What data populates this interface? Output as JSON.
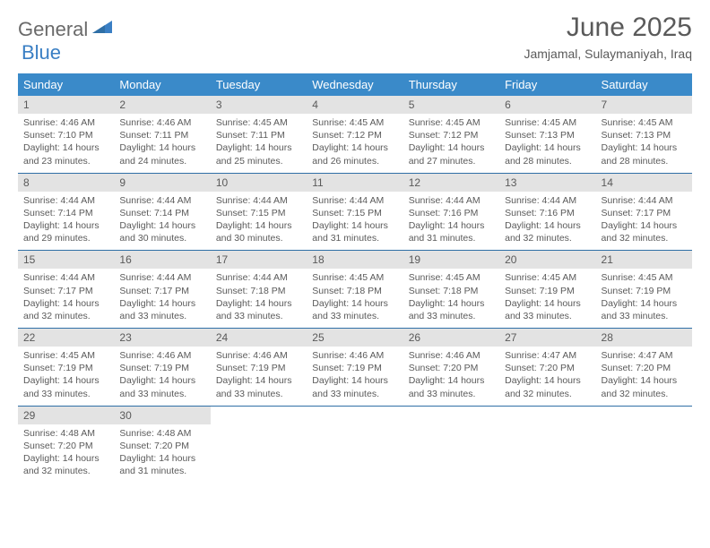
{
  "brand": {
    "part1": "General",
    "part2": "Blue"
  },
  "title": "June 2025",
  "location": "Jamjamal, Sulaymaniyah, Iraq",
  "colors": {
    "header_bg": "#3a8ac9",
    "header_text": "#ffffff",
    "daynum_bg": "#e3e3e3",
    "row_border": "#2f6fa6",
    "text": "#5a5a5a",
    "brand_blue": "#3a7fc4",
    "background": "#ffffff"
  },
  "typography": {
    "title_fontsize": 30,
    "subtitle_fontsize": 14,
    "header_fontsize": 13,
    "daynum_fontsize": 12,
    "body_fontsize": 10.5
  },
  "weekday_labels": [
    "Sunday",
    "Monday",
    "Tuesday",
    "Wednesday",
    "Thursday",
    "Friday",
    "Saturday"
  ],
  "weeks": [
    [
      {
        "n": 1,
        "sunrise": "4:46 AM",
        "sunset": "7:10 PM",
        "daylight": "14 hours and 23 minutes."
      },
      {
        "n": 2,
        "sunrise": "4:46 AM",
        "sunset": "7:11 PM",
        "daylight": "14 hours and 24 minutes."
      },
      {
        "n": 3,
        "sunrise": "4:45 AM",
        "sunset": "7:11 PM",
        "daylight": "14 hours and 25 minutes."
      },
      {
        "n": 4,
        "sunrise": "4:45 AM",
        "sunset": "7:12 PM",
        "daylight": "14 hours and 26 minutes."
      },
      {
        "n": 5,
        "sunrise": "4:45 AM",
        "sunset": "7:12 PM",
        "daylight": "14 hours and 27 minutes."
      },
      {
        "n": 6,
        "sunrise": "4:45 AM",
        "sunset": "7:13 PM",
        "daylight": "14 hours and 28 minutes."
      },
      {
        "n": 7,
        "sunrise": "4:45 AM",
        "sunset": "7:13 PM",
        "daylight": "14 hours and 28 minutes."
      }
    ],
    [
      {
        "n": 8,
        "sunrise": "4:44 AM",
        "sunset": "7:14 PM",
        "daylight": "14 hours and 29 minutes."
      },
      {
        "n": 9,
        "sunrise": "4:44 AM",
        "sunset": "7:14 PM",
        "daylight": "14 hours and 30 minutes."
      },
      {
        "n": 10,
        "sunrise": "4:44 AM",
        "sunset": "7:15 PM",
        "daylight": "14 hours and 30 minutes."
      },
      {
        "n": 11,
        "sunrise": "4:44 AM",
        "sunset": "7:15 PM",
        "daylight": "14 hours and 31 minutes."
      },
      {
        "n": 12,
        "sunrise": "4:44 AM",
        "sunset": "7:16 PM",
        "daylight": "14 hours and 31 minutes."
      },
      {
        "n": 13,
        "sunrise": "4:44 AM",
        "sunset": "7:16 PM",
        "daylight": "14 hours and 32 minutes."
      },
      {
        "n": 14,
        "sunrise": "4:44 AM",
        "sunset": "7:17 PM",
        "daylight": "14 hours and 32 minutes."
      }
    ],
    [
      {
        "n": 15,
        "sunrise": "4:44 AM",
        "sunset": "7:17 PM",
        "daylight": "14 hours and 32 minutes."
      },
      {
        "n": 16,
        "sunrise": "4:44 AM",
        "sunset": "7:17 PM",
        "daylight": "14 hours and 33 minutes."
      },
      {
        "n": 17,
        "sunrise": "4:44 AM",
        "sunset": "7:18 PM",
        "daylight": "14 hours and 33 minutes."
      },
      {
        "n": 18,
        "sunrise": "4:45 AM",
        "sunset": "7:18 PM",
        "daylight": "14 hours and 33 minutes."
      },
      {
        "n": 19,
        "sunrise": "4:45 AM",
        "sunset": "7:18 PM",
        "daylight": "14 hours and 33 minutes."
      },
      {
        "n": 20,
        "sunrise": "4:45 AM",
        "sunset": "7:19 PM",
        "daylight": "14 hours and 33 minutes."
      },
      {
        "n": 21,
        "sunrise": "4:45 AM",
        "sunset": "7:19 PM",
        "daylight": "14 hours and 33 minutes."
      }
    ],
    [
      {
        "n": 22,
        "sunrise": "4:45 AM",
        "sunset": "7:19 PM",
        "daylight": "14 hours and 33 minutes."
      },
      {
        "n": 23,
        "sunrise": "4:46 AM",
        "sunset": "7:19 PM",
        "daylight": "14 hours and 33 minutes."
      },
      {
        "n": 24,
        "sunrise": "4:46 AM",
        "sunset": "7:19 PM",
        "daylight": "14 hours and 33 minutes."
      },
      {
        "n": 25,
        "sunrise": "4:46 AM",
        "sunset": "7:19 PM",
        "daylight": "14 hours and 33 minutes."
      },
      {
        "n": 26,
        "sunrise": "4:46 AM",
        "sunset": "7:20 PM",
        "daylight": "14 hours and 33 minutes."
      },
      {
        "n": 27,
        "sunrise": "4:47 AM",
        "sunset": "7:20 PM",
        "daylight": "14 hours and 32 minutes."
      },
      {
        "n": 28,
        "sunrise": "4:47 AM",
        "sunset": "7:20 PM",
        "daylight": "14 hours and 32 minutes."
      }
    ],
    [
      {
        "n": 29,
        "sunrise": "4:48 AM",
        "sunset": "7:20 PM",
        "daylight": "14 hours and 32 minutes."
      },
      {
        "n": 30,
        "sunrise": "4:48 AM",
        "sunset": "7:20 PM",
        "daylight": "14 hours and 31 minutes."
      },
      null,
      null,
      null,
      null,
      null
    ]
  ],
  "labels": {
    "sunrise_prefix": "Sunrise: ",
    "sunset_prefix": "Sunset: ",
    "daylight_prefix": "Daylight: "
  }
}
